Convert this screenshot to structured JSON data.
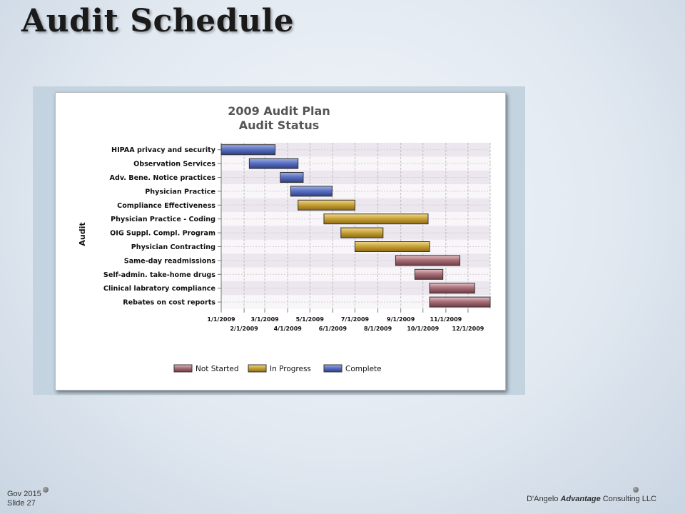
{
  "slide": {
    "title": "Audit Schedule",
    "footer_left_line1": "Gov 2015",
    "footer_left_line2": "Slide 27",
    "footer_right_pre": "D'Angelo ",
    "footer_right_brand": "Advantage",
    "footer_right_post": " Consulting LLC"
  },
  "chart_data": {
    "type": "gantt",
    "title": "2009 Audit Plan",
    "subtitle": "Audit Status",
    "ylabel": "Audit",
    "xlim": [
      "1/1/2009",
      "12/31/2009"
    ],
    "x_ticks_upper": [
      "1/1/2009",
      "3/1/2009",
      "5/1/2009",
      "7/1/2009",
      "9/1/2009",
      "11/1/2009"
    ],
    "x_ticks_lower": [
      "2/1/2009",
      "4/1/2009",
      "6/1/2009",
      "8/1/2009",
      "10/1/2009",
      "12/1/2009"
    ],
    "grid": true,
    "legend_position": "bottom",
    "status_colors": {
      "Not Started": "#a86a73",
      "In Progress": "#c4a13a",
      "Complete": "#4a5fb0"
    },
    "legend": [
      "Not Started",
      "In Progress",
      "Complete"
    ],
    "tasks": [
      {
        "name": "HIPAA privacy and security",
        "start": "1/1/2009",
        "end": "3/15/2009",
        "status": "Complete"
      },
      {
        "name": "Observation Services",
        "start": "2/8/2009",
        "end": "4/15/2009",
        "status": "Complete"
      },
      {
        "name": "Adv. Bene. Notice practices",
        "start": "3/22/2009",
        "end": "4/22/2009",
        "status": "Complete"
      },
      {
        "name": "Physician Practice",
        "start": "4/5/2009",
        "end": "5/31/2009",
        "status": "Complete"
      },
      {
        "name": "Compliance Effectiveness",
        "start": "4/15/2009",
        "end": "7/1/2009",
        "status": "In Progress"
      },
      {
        "name": "Physician Practice - Coding",
        "start": "5/20/2009",
        "end": "10/8/2009",
        "status": "In Progress"
      },
      {
        "name": "OIG Suppl. Compl. Program",
        "start": "6/12/2009",
        "end": "8/8/2009",
        "status": "In Progress"
      },
      {
        "name": "Physician Contracting",
        "start": "7/1/2009",
        "end": "10/10/2009",
        "status": "In Progress"
      },
      {
        "name": "Same-day readmissions",
        "start": "8/25/2009",
        "end": "11/20/2009",
        "status": "Not Started"
      },
      {
        "name": "Self-admin. take-home drugs",
        "start": "9/20/2009",
        "end": "10/28/2009",
        "status": "Not Started"
      },
      {
        "name": "Clinical labratory compliance",
        "start": "10/10/2009",
        "end": "12/10/2009",
        "status": "Not Started"
      },
      {
        "name": "Rebates on cost reports",
        "start": "10/10/2009",
        "end": "12/31/2009",
        "status": "Not Started"
      }
    ]
  }
}
